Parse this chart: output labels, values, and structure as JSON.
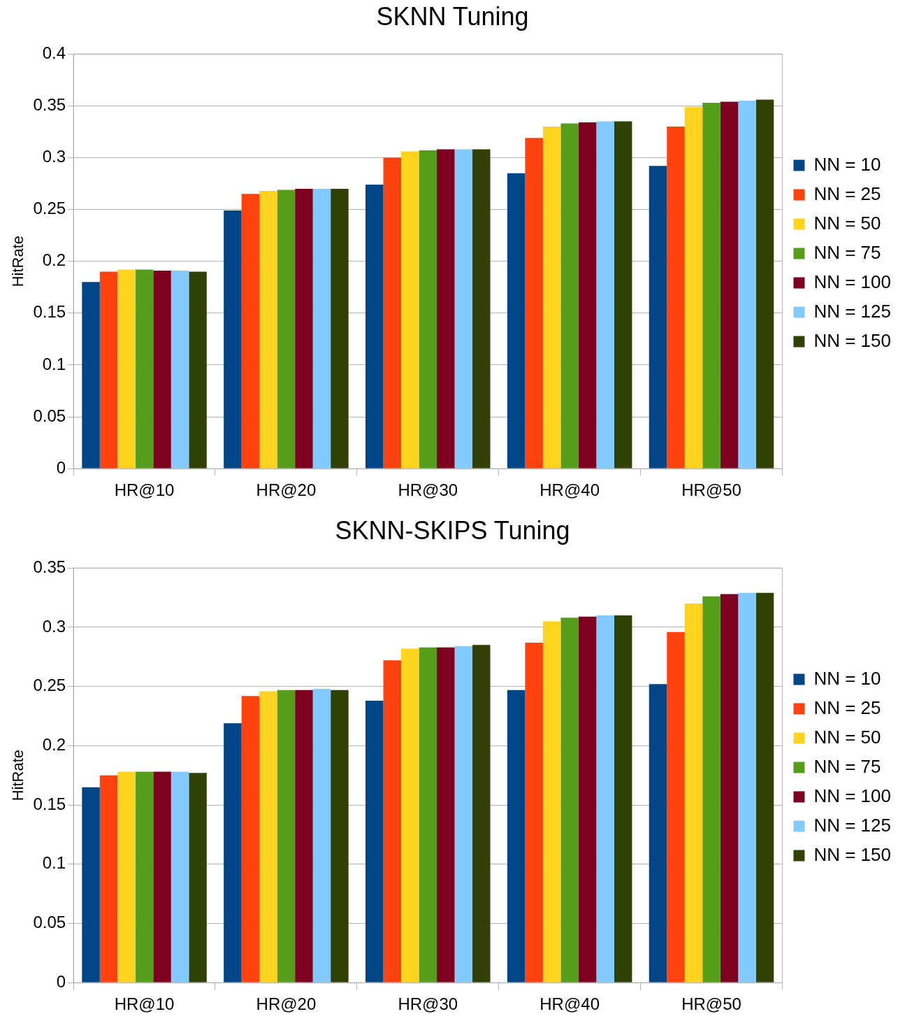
{
  "chart_data": [
    {
      "type": "bar",
      "title": "SKNN Tuning",
      "ylabel": "HitRate",
      "categories": [
        "HR@10",
        "HR@20",
        "HR@30",
        "HR@40",
        "HR@50"
      ],
      "ylim": [
        0,
        0.4
      ],
      "yticks": [
        0,
        0.05,
        0.1,
        0.15,
        0.2,
        0.25,
        0.3,
        0.35,
        0.4
      ],
      "grid": "y",
      "legend": "right",
      "series": [
        {
          "name": "NN = 10",
          "color": "#004586",
          "values": [
            0.18,
            0.249,
            0.274,
            0.285,
            0.292
          ]
        },
        {
          "name": "NN = 25",
          "color": "#ff420e",
          "values": [
            0.19,
            0.265,
            0.3,
            0.319,
            0.33
          ]
        },
        {
          "name": "NN = 50",
          "color": "#ffd320",
          "values": [
            0.192,
            0.268,
            0.306,
            0.33,
            0.349
          ]
        },
        {
          "name": "NN = 75",
          "color": "#579d1c",
          "values": [
            0.192,
            0.269,
            0.307,
            0.333,
            0.353
          ]
        },
        {
          "name": "NN = 100",
          "color": "#7e0021",
          "values": [
            0.191,
            0.27,
            0.308,
            0.334,
            0.354
          ]
        },
        {
          "name": "NN = 125",
          "color": "#83caff",
          "values": [
            0.191,
            0.27,
            0.308,
            0.335,
            0.355
          ]
        },
        {
          "name": "NN = 150",
          "color": "#314004",
          "values": [
            0.19,
            0.27,
            0.308,
            0.335,
            0.356
          ]
        }
      ]
    },
    {
      "type": "bar",
      "title": "SKNN-SKIPS Tuning",
      "ylabel": "HitRate",
      "categories": [
        "HR@10",
        "HR@20",
        "HR@30",
        "HR@40",
        "HR@50"
      ],
      "ylim": [
        0,
        0.35
      ],
      "yticks": [
        0,
        0.05,
        0.1,
        0.15,
        0.2,
        0.25,
        0.3,
        0.35
      ],
      "grid": "y",
      "legend": "right",
      "series": [
        {
          "name": "NN = 10",
          "color": "#004586",
          "values": [
            0.165,
            0.219,
            0.238,
            0.247,
            0.252
          ]
        },
        {
          "name": "NN = 25",
          "color": "#ff420e",
          "values": [
            0.175,
            0.242,
            0.272,
            0.287,
            0.296
          ]
        },
        {
          "name": "NN = 50",
          "color": "#ffd320",
          "values": [
            0.178,
            0.246,
            0.282,
            0.305,
            0.32
          ]
        },
        {
          "name": "NN = 75",
          "color": "#579d1c",
          "values": [
            0.178,
            0.247,
            0.283,
            0.308,
            0.326
          ]
        },
        {
          "name": "NN = 100",
          "color": "#7e0021",
          "values": [
            0.178,
            0.247,
            0.283,
            0.309,
            0.328
          ]
        },
        {
          "name": "NN = 125",
          "color": "#83caff",
          "values": [
            0.178,
            0.248,
            0.284,
            0.31,
            0.329
          ]
        },
        {
          "name": "NN = 150",
          "color": "#314004",
          "values": [
            0.177,
            0.247,
            0.285,
            0.31,
            0.329
          ]
        }
      ]
    }
  ]
}
